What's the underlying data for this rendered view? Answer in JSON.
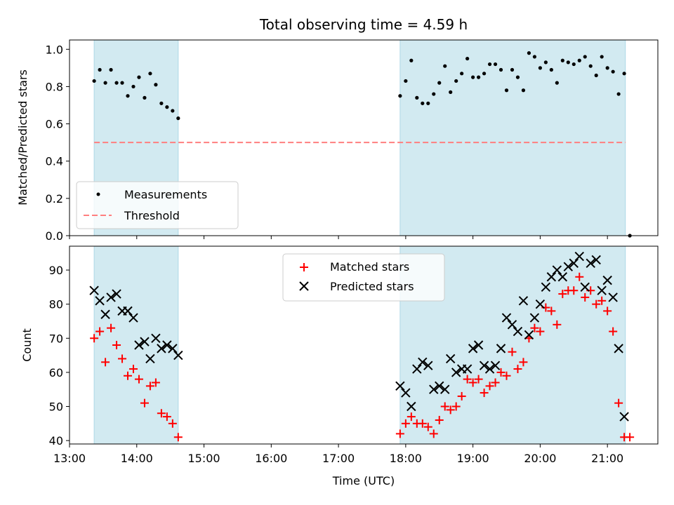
{
  "colors": {
    "band": "#add8e6",
    "measurement": "#000000",
    "threshold": "#ff7f7f",
    "matched": "#ff0000",
    "predicted": "#000000"
  },
  "chart_data": [
    {
      "type": "scatter",
      "title": "Total observing time = 4.59 h",
      "xlabel": "",
      "ylabel": "Matched/Predicted stars",
      "xlim": [
        "13:00",
        "21:45"
      ],
      "ylim": [
        0,
        1.05
      ],
      "x_ticks": [
        "13:00",
        "14:00",
        "15:00",
        "16:00",
        "17:00",
        "18:00",
        "19:00",
        "20:00",
        "21:00"
      ],
      "y_ticks": [
        "0.0",
        "0.2",
        "0.4",
        "0.6",
        "0.8",
        "1.0"
      ],
      "y_tick_values": [
        0,
        0.2,
        0.4,
        0.6,
        0.8,
        1.0
      ],
      "shaded_intervals": [
        [
          "13:22",
          "14:37"
        ],
        [
          "17:55",
          "21:16"
        ]
      ],
      "threshold": 0.5,
      "threshold_range": [
        "13:22",
        "21:16"
      ],
      "legend_position": "lower-left",
      "legend": [
        {
          "name": "Measurements",
          "marker": "dot"
        },
        {
          "name": "Threshold",
          "marker": "dashed-line"
        }
      ],
      "series": [
        {
          "name": "Measurements",
          "points": [
            [
              "13:22",
              0.83
            ],
            [
              "13:27",
              0.89
            ],
            [
              "13:32",
              0.82
            ],
            [
              "13:37",
              0.89
            ],
            [
              "13:42",
              0.82
            ],
            [
              "13:47",
              0.82
            ],
            [
              "13:52",
              0.75
            ],
            [
              "13:57",
              0.8
            ],
            [
              "14:02",
              0.85
            ],
            [
              "14:07",
              0.74
            ],
            [
              "14:12",
              0.87
            ],
            [
              "14:17",
              0.81
            ],
            [
              "14:22",
              0.71
            ],
            [
              "14:27",
              0.69
            ],
            [
              "14:32",
              0.67
            ],
            [
              "14:37",
              0.63
            ],
            [
              "17:55",
              0.75
            ],
            [
              "18:00",
              0.83
            ],
            [
              "18:05",
              0.94
            ],
            [
              "18:10",
              0.74
            ],
            [
              "18:15",
              0.71
            ],
            [
              "18:20",
              0.71
            ],
            [
              "18:25",
              0.76
            ],
            [
              "18:30",
              0.82
            ],
            [
              "18:35",
              0.91
            ],
            [
              "18:40",
              0.77
            ],
            [
              "18:45",
              0.83
            ],
            [
              "18:50",
              0.87
            ],
            [
              "18:55",
              0.95
            ],
            [
              "19:00",
              0.85
            ],
            [
              "19:05",
              0.85
            ],
            [
              "19:10",
              0.87
            ],
            [
              "19:15",
              0.92
            ],
            [
              "19:20",
              0.92
            ],
            [
              "19:25",
              0.89
            ],
            [
              "19:30",
              0.78
            ],
            [
              "19:35",
              0.89
            ],
            [
              "19:40",
              0.85
            ],
            [
              "19:45",
              0.78
            ],
            [
              "19:50",
              0.98
            ],
            [
              "19:55",
              0.96
            ],
            [
              "20:00",
              0.9
            ],
            [
              "20:05",
              0.93
            ],
            [
              "20:10",
              0.89
            ],
            [
              "20:15",
              0.82
            ],
            [
              "20:20",
              0.94
            ],
            [
              "20:25",
              0.93
            ],
            [
              "20:30",
              0.92
            ],
            [
              "20:35",
              0.94
            ],
            [
              "20:40",
              0.96
            ],
            [
              "20:45",
              0.91
            ],
            [
              "20:50",
              0.86
            ],
            [
              "20:55",
              0.96
            ],
            [
              "21:00",
              0.9
            ],
            [
              "21:05",
              0.88
            ],
            [
              "21:10",
              0.76
            ],
            [
              "21:15",
              0.87
            ],
            [
              "21:20",
              0.0
            ]
          ]
        }
      ]
    },
    {
      "type": "scatter",
      "title": "",
      "xlabel": "Time (UTC)",
      "ylabel": "Count",
      "xlim": [
        "13:00",
        "21:45"
      ],
      "ylim": [
        39,
        97
      ],
      "x_ticks": [
        "13:00",
        "14:00",
        "15:00",
        "16:00",
        "17:00",
        "18:00",
        "19:00",
        "20:00",
        "21:00"
      ],
      "y_ticks": [
        "40",
        "50",
        "60",
        "70",
        "80",
        "90"
      ],
      "y_tick_values": [
        40,
        50,
        60,
        70,
        80,
        90
      ],
      "shaded_intervals": [
        [
          "13:22",
          "14:37"
        ],
        [
          "17:55",
          "21:16"
        ]
      ],
      "legend_position": "top-center",
      "legend": [
        {
          "name": "Matched stars",
          "marker": "plus"
        },
        {
          "name": "Predicted stars",
          "marker": "x"
        }
      ],
      "series": [
        {
          "name": "Matched stars",
          "points": [
            [
              "13:22",
              70
            ],
            [
              "13:27",
              72
            ],
            [
              "13:32",
              63
            ],
            [
              "13:37",
              73
            ],
            [
              "13:42",
              68
            ],
            [
              "13:47",
              64
            ],
            [
              "13:52",
              59
            ],
            [
              "13:57",
              61
            ],
            [
              "14:02",
              58
            ],
            [
              "14:07",
              51
            ],
            [
              "14:12",
              56
            ],
            [
              "14:17",
              57
            ],
            [
              "14:22",
              48
            ],
            [
              "14:27",
              47
            ],
            [
              "14:32",
              45
            ],
            [
              "14:37",
              41
            ],
            [
              "17:55",
              42
            ],
            [
              "18:00",
              45
            ],
            [
              "18:05",
              47
            ],
            [
              "18:10",
              45
            ],
            [
              "18:15",
              45
            ],
            [
              "18:20",
              44
            ],
            [
              "18:25",
              42
            ],
            [
              "18:30",
              46
            ],
            [
              "18:35",
              50
            ],
            [
              "18:40",
              49
            ],
            [
              "18:45",
              50
            ],
            [
              "18:50",
              53
            ],
            [
              "18:55",
              58
            ],
            [
              "19:00",
              57
            ],
            [
              "19:05",
              58
            ],
            [
              "19:10",
              54
            ],
            [
              "19:15",
              56
            ],
            [
              "19:20",
              57
            ],
            [
              "19:25",
              60
            ],
            [
              "19:30",
              59
            ],
            [
              "19:35",
              66
            ],
            [
              "19:40",
              61
            ],
            [
              "19:45",
              63
            ],
            [
              "19:50",
              70
            ],
            [
              "19:55",
              73
            ],
            [
              "20:00",
              72
            ],
            [
              "20:05",
              79
            ],
            [
              "20:10",
              78
            ],
            [
              "20:15",
              74
            ],
            [
              "20:20",
              83
            ],
            [
              "20:25",
              84
            ],
            [
              "20:30",
              84
            ],
            [
              "20:35",
              88
            ],
            [
              "20:40",
              82
            ],
            [
              "20:45",
              84
            ],
            [
              "20:50",
              80
            ],
            [
              "20:55",
              81
            ],
            [
              "21:00",
              78
            ],
            [
              "21:05",
              72
            ],
            [
              "21:10",
              51
            ],
            [
              "21:15",
              41
            ],
            [
              "21:20",
              41
            ]
          ]
        },
        {
          "name": "Predicted stars",
          "points": [
            [
              "13:22",
              84
            ],
            [
              "13:27",
              81
            ],
            [
              "13:32",
              77
            ],
            [
              "13:37",
              82
            ],
            [
              "13:42",
              83
            ],
            [
              "13:47",
              78
            ],
            [
              "13:52",
              78
            ],
            [
              "13:57",
              76
            ],
            [
              "14:02",
              68
            ],
            [
              "14:07",
              69
            ],
            [
              "14:12",
              64
            ],
            [
              "14:17",
              70
            ],
            [
              "14:22",
              67
            ],
            [
              "14:27",
              68
            ],
            [
              "14:32",
              67
            ],
            [
              "14:37",
              65
            ],
            [
              "17:55",
              56
            ],
            [
              "18:00",
              54
            ],
            [
              "18:05",
              50
            ],
            [
              "18:10",
              61
            ],
            [
              "18:15",
              63
            ],
            [
              "18:20",
              62
            ],
            [
              "18:25",
              55
            ],
            [
              "18:30",
              56
            ],
            [
              "18:35",
              55
            ],
            [
              "18:40",
              64
            ],
            [
              "18:45",
              60
            ],
            [
              "18:50",
              61
            ],
            [
              "18:55",
              61
            ],
            [
              "19:00",
              67
            ],
            [
              "19:05",
              68
            ],
            [
              "19:10",
              62
            ],
            [
              "19:15",
              61
            ],
            [
              "19:20",
              62
            ],
            [
              "19:25",
              67
            ],
            [
              "19:30",
              76
            ],
            [
              "19:35",
              74
            ],
            [
              "19:40",
              72
            ],
            [
              "19:45",
              81
            ],
            [
              "19:50",
              71
            ],
            [
              "19:55",
              76
            ],
            [
              "20:00",
              80
            ],
            [
              "20:05",
              85
            ],
            [
              "20:10",
              88
            ],
            [
              "20:15",
              90
            ],
            [
              "20:20",
              88
            ],
            [
              "20:25",
              91
            ],
            [
              "20:30",
              92
            ],
            [
              "20:35",
              94
            ],
            [
              "20:40",
              85
            ],
            [
              "20:45",
              92
            ],
            [
              "20:50",
              93
            ],
            [
              "20:55",
              84
            ],
            [
              "21:00",
              87
            ],
            [
              "21:05",
              82
            ],
            [
              "21:10",
              67
            ],
            [
              "21:15",
              47
            ]
          ]
        }
      ]
    }
  ]
}
